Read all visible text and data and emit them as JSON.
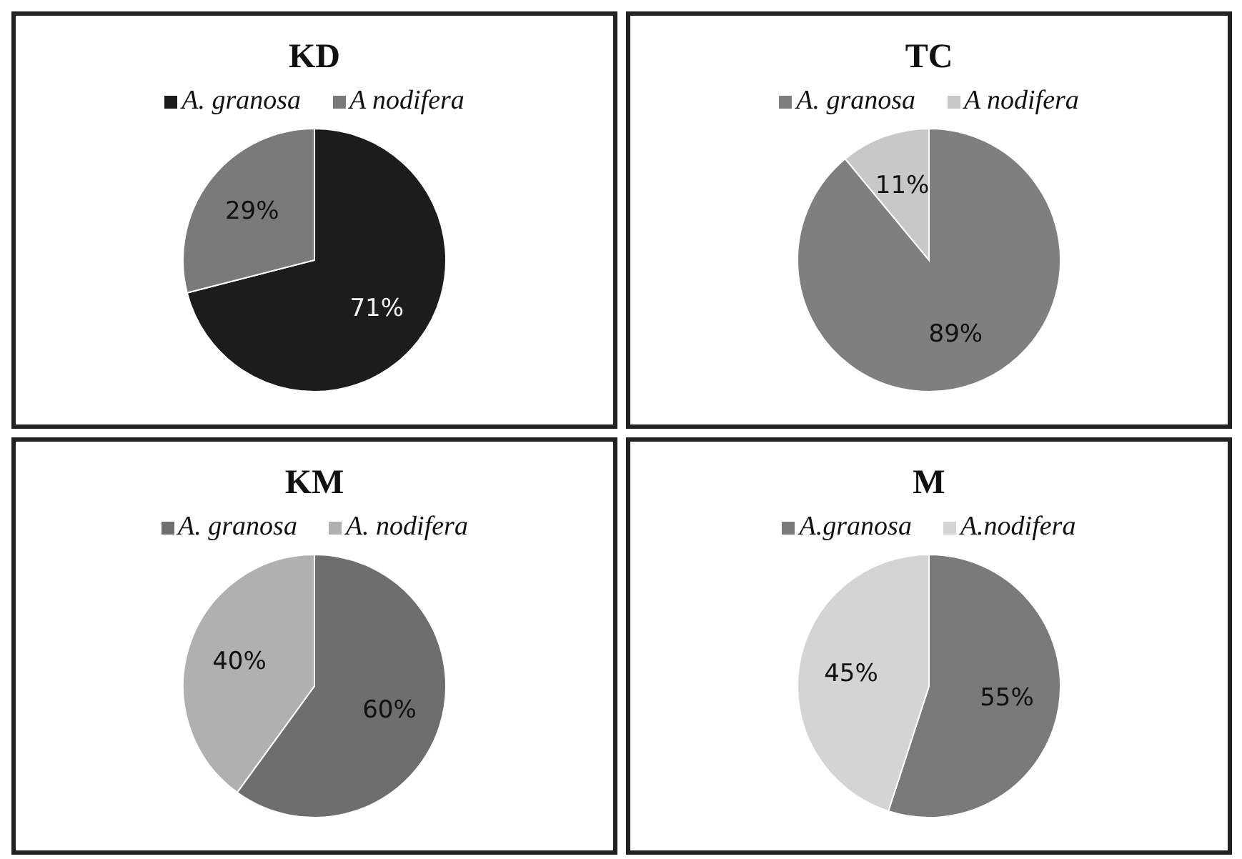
{
  "chart_data": [
    {
      "type": "pie",
      "title": "KD",
      "categories": [
        "A. granosa",
        "A nodifera"
      ],
      "values": [
        71,
        29
      ],
      "colors": [
        "#1c1c1c",
        "#7a7a7a"
      ],
      "value_labels": [
        "71%",
        "29%"
      ],
      "legend": "top"
    },
    {
      "type": "pie",
      "title": "TC",
      "categories": [
        "A. granosa",
        "A nodifera"
      ],
      "values": [
        89,
        11
      ],
      "colors": [
        "#7f7f7f",
        "#c8c8c8"
      ],
      "value_labels": [
        "89%",
        "11%"
      ],
      "legend": "top"
    },
    {
      "type": "pie",
      "title": "KM",
      "categories": [
        "A. granosa",
        "A. nodifera"
      ],
      "values": [
        60,
        40
      ],
      "colors": [
        "#6e6e6e",
        "#b0b0b0"
      ],
      "value_labels": [
        "60%",
        "40%"
      ],
      "legend": "top"
    },
    {
      "type": "pie",
      "title": "M",
      "categories": [
        "A.granosa",
        "A.nodifera"
      ],
      "values": [
        55,
        45
      ],
      "colors": [
        "#7a7a7a",
        "#d4d4d4"
      ],
      "value_labels": [
        "55%",
        "45%"
      ],
      "legend": "top"
    }
  ]
}
